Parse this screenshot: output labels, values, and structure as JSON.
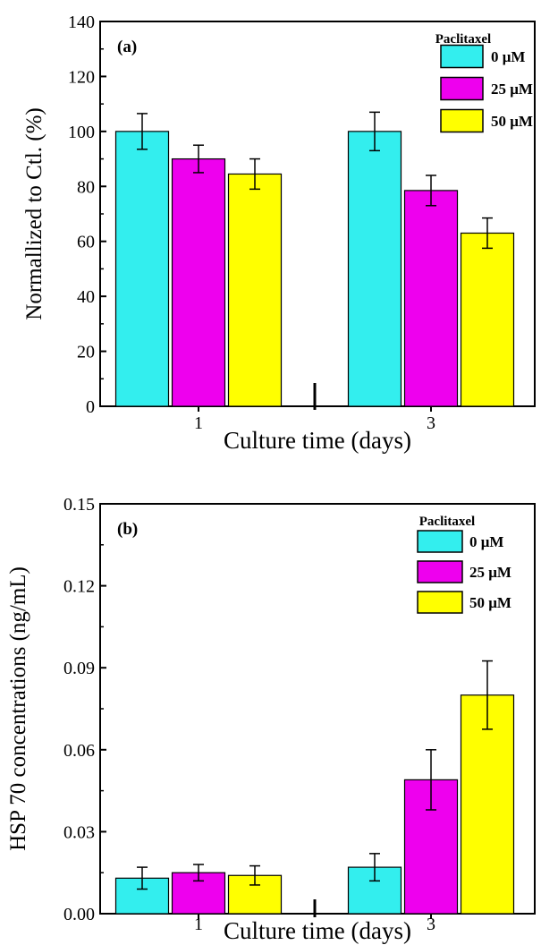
{
  "chart_data": [
    {
      "type": "bar",
      "panel_label": "(a)",
      "categories": [
        "1",
        "3"
      ],
      "xlabel": "Culture time (days)",
      "ylabel": "Normallized to Ctl. (%)",
      "ylim": [
        0,
        140
      ],
      "yticks": [
        "0",
        "20",
        "40",
        "60",
        "80",
        "100",
        "120",
        "140"
      ],
      "legend_title": "Paclitaxel",
      "legend_position": "top-right",
      "series": [
        {
          "name": "0 μM",
          "color": "#33eeee",
          "values": [
            100,
            100
          ],
          "errors": [
            6.5,
            7
          ]
        },
        {
          "name": "25 μM",
          "color": "#ee00ee",
          "values": [
            90,
            78.5
          ],
          "errors": [
            5,
            5.5
          ]
        },
        {
          "name": "50 μM",
          "color": "#ffff00",
          "values": [
            84.5,
            63
          ],
          "errors": [
            5.5,
            5.5
          ]
        }
      ]
    },
    {
      "type": "bar",
      "panel_label": "(b)",
      "categories": [
        "1",
        "3"
      ],
      "xlabel": "Culture time (days)",
      "ylabel": "HSP 70 concentrations (ng/mL)",
      "ylim": [
        0,
        0.15
      ],
      "yticks": [
        "0.00",
        "0.03",
        "0.06",
        "0.09",
        "0.12",
        "0.15"
      ],
      "legend_title": "Paclitaxel",
      "legend_position": "top-right",
      "series": [
        {
          "name": "0 μM",
          "color": "#33eeee",
          "values": [
            0.013,
            0.017
          ],
          "errors": [
            0.004,
            0.005
          ]
        },
        {
          "name": "25 μM",
          "color": "#ee00ee",
          "values": [
            0.015,
            0.049
          ],
          "errors": [
            0.003,
            0.011
          ]
        },
        {
          "name": "50 μM",
          "color": "#ffff00",
          "values": [
            0.014,
            0.08
          ],
          "errors": [
            0.0035,
            0.0125
          ]
        }
      ]
    }
  ]
}
